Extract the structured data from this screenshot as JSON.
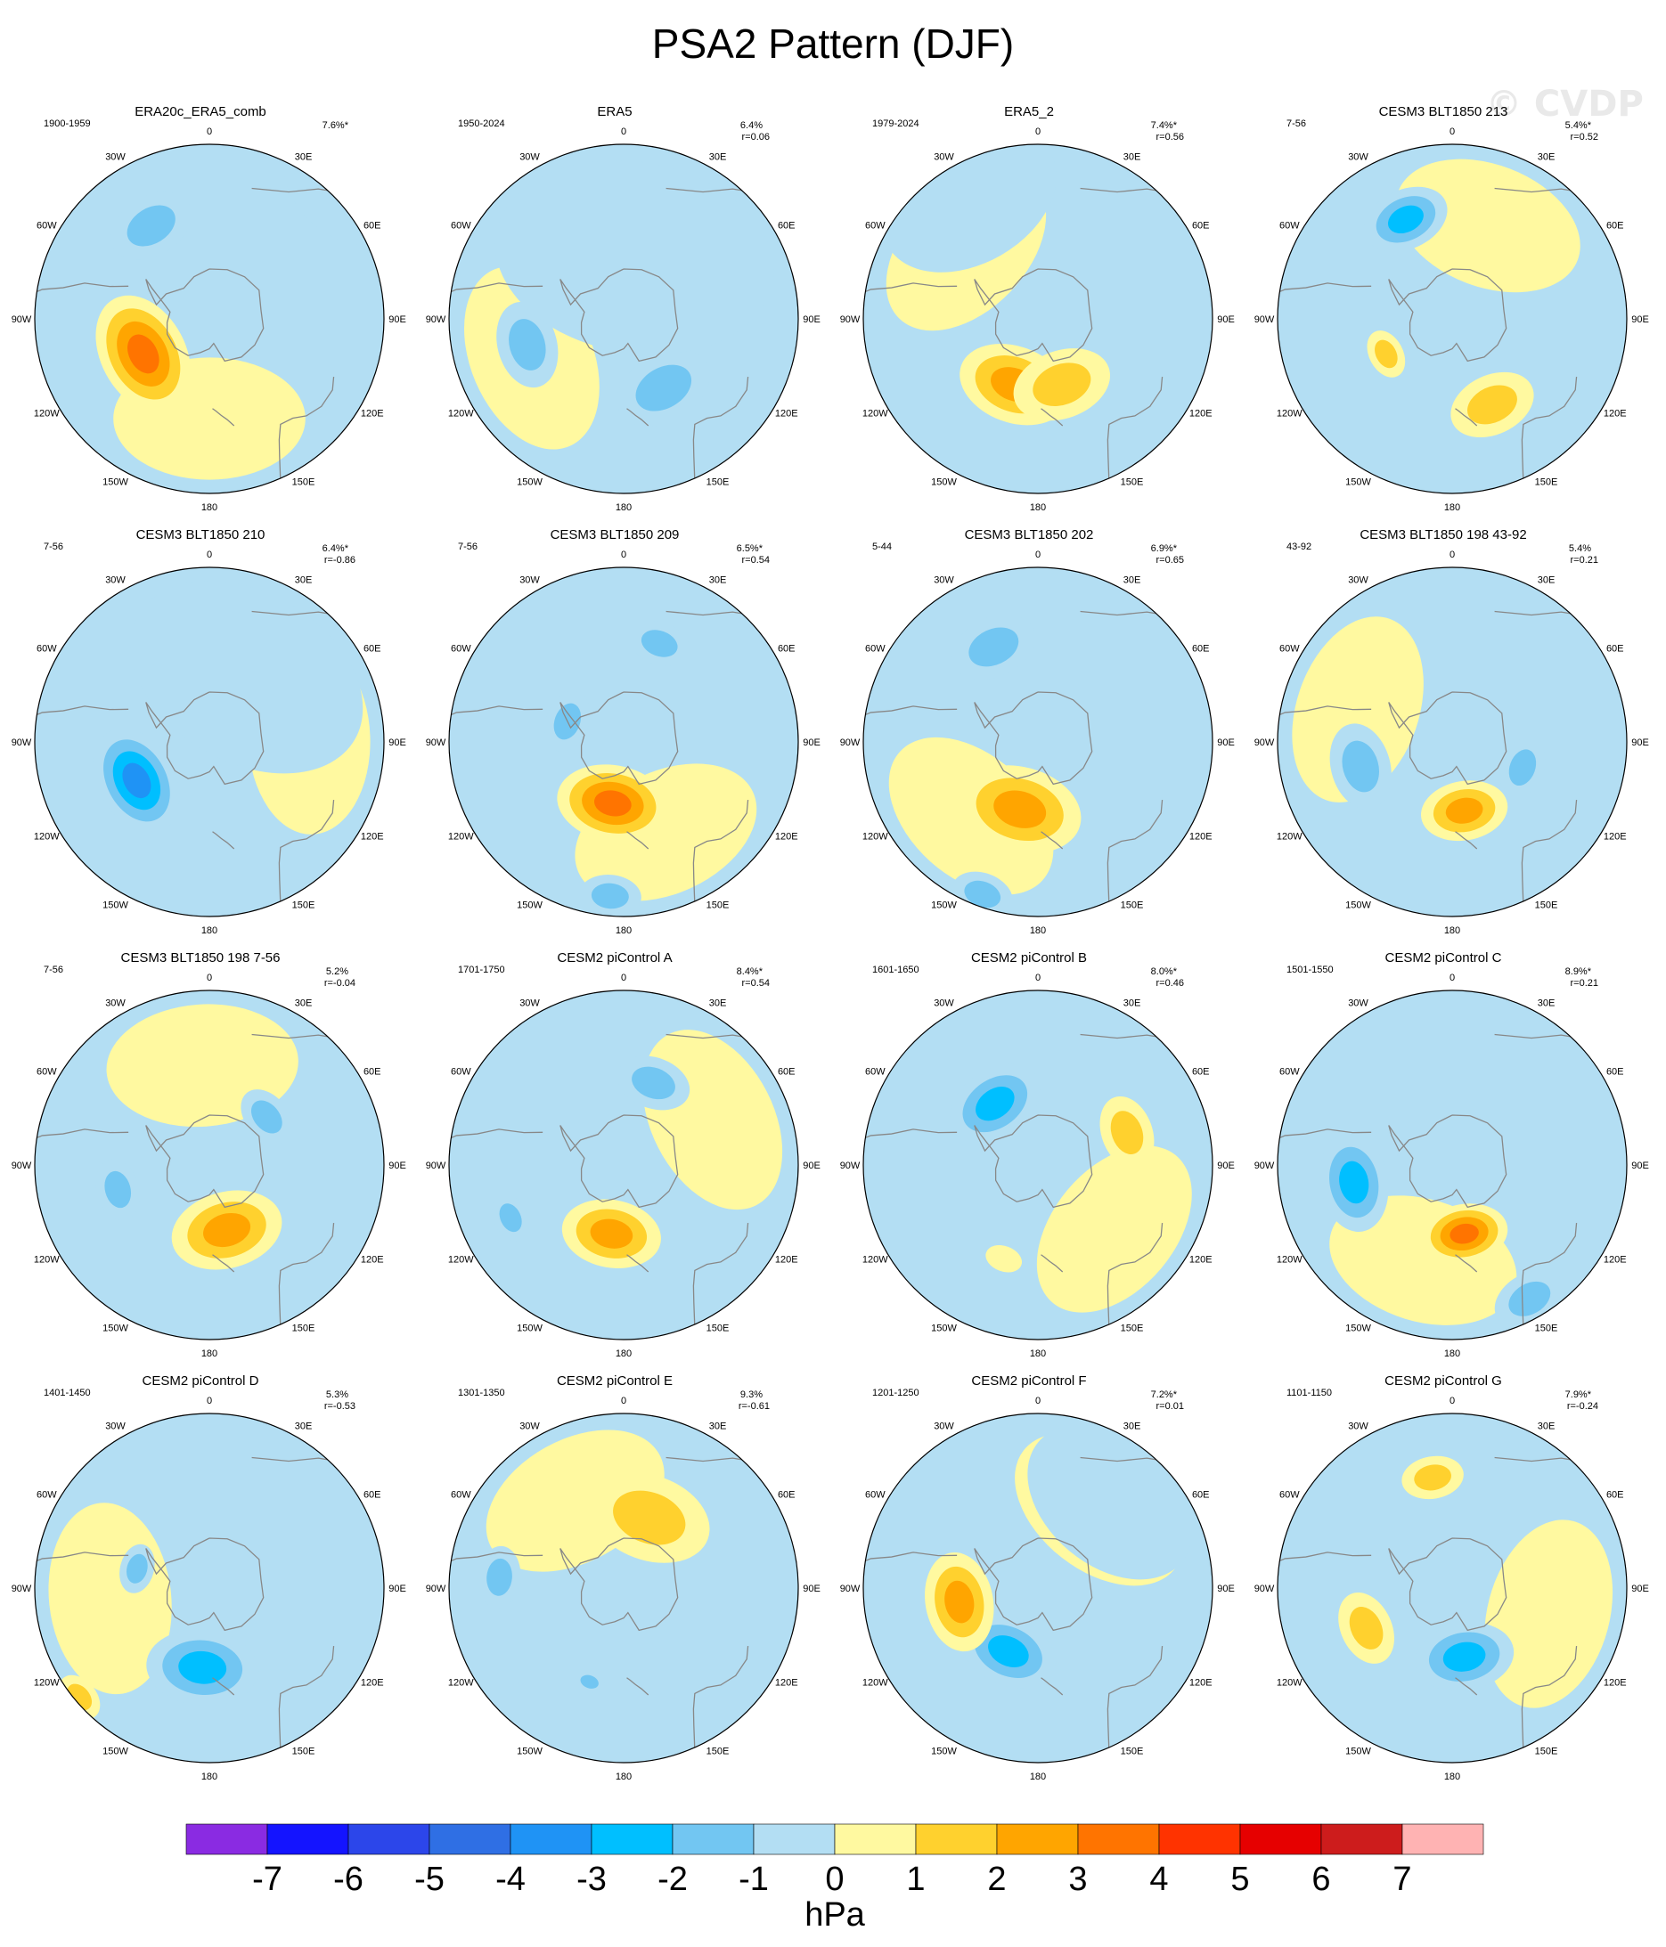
{
  "figure_title": "PSA2 Pattern (DJF)",
  "watermark": "© CVDP",
  "lon_labels": [
    "0",
    "30E",
    "60E",
    "90E",
    "120E",
    "150E",
    "180",
    "150W",
    "120W",
    "90W",
    "60W",
    "30W"
  ],
  "colors": {
    "land_outline": "#888888",
    "levels": [
      "#8a2be2",
      "#1414ff",
      "#2c46ea",
      "#2f6fe4",
      "#1f93f5",
      "#00bfff",
      "#72c6f2",
      "#b3def3",
      "#fff9a0",
      "#ffd12e",
      "#ffa500",
      "#ff7400",
      "#ff3300",
      "#e60000",
      "#cd1c1c",
      "#ffb3b3"
    ]
  },
  "chart_data": {
    "type": "heatmap",
    "projection": "south-polar-stereographic",
    "units": "hPa",
    "colorbar": {
      "ticks": [
        "-7",
        "-6",
        "-5",
        "-4",
        "-3",
        "-2",
        "-1",
        "0",
        "1",
        "2",
        "3",
        "4",
        "5",
        "6",
        "7"
      ],
      "label": "hPa",
      "boundaries": [
        -7,
        -6,
        -5,
        -4,
        -3,
        -2,
        -1,
        0,
        1,
        2,
        3,
        4,
        5,
        6,
        7
      ]
    },
    "panels": [
      {
        "title": "ERA20c_ERA5_comb",
        "period": "1900-1959",
        "pct": "7.6%*",
        "r": "",
        "anomalies": [
          {
            "lon": -118,
            "colat": 30,
            "v": 3.5,
            "w": 20
          },
          {
            "lon": -32,
            "colat": 44,
            "v": -1.8,
            "w": 14
          },
          {
            "lon": 45,
            "colat": 75,
            "v": -0.6,
            "w": 22
          }
        ]
      },
      {
        "title": "ERA5",
        "period": "1950-2024",
        "pct": "6.4%",
        "r": "r=0.06",
        "anomalies": [
          {
            "lon": -105,
            "colat": 40,
            "v": -1.5,
            "w": 14
          },
          {
            "lon": 150,
            "colat": 32,
            "v": -1.8,
            "w": 16
          },
          {
            "lon": 10,
            "colat": 25,
            "v": -0.4,
            "w": 45
          }
        ]
      },
      {
        "title": "ERA5_2",
        "period": "1979-2024",
        "pct": "7.4%*",
        "r": "r=0.56",
        "anomalies": [
          {
            "lon": -160,
            "colat": 28,
            "v": 2.3,
            "w": 18
          },
          {
            "lon": 160,
            "colat": 28,
            "v": 1.8,
            "w": 16
          },
          {
            "lon": -30,
            "colat": 55,
            "v": -0.6,
            "w": 30
          }
        ]
      },
      {
        "title": "CESM3 BLT1850 213",
        "period": "7-56",
        "pct": "5.4%*",
        "r": "r=0.52",
        "anomalies": [
          {
            "lon": -25,
            "colat": 44,
            "v": -2.6,
            "w": 14
          },
          {
            "lon": 155,
            "colat": 38,
            "v": 1.8,
            "w": 14
          },
          {
            "lon": -118,
            "colat": 30,
            "v": 1.2,
            "w": 8
          }
        ]
      },
      {
        "title": "CESM3 BLT1850 210",
        "period": "7-56",
        "pct": "6.4%*",
        "r": "r=-0.86",
        "anomalies": [
          {
            "lon": -118,
            "colat": 33,
            "v": -3.2,
            "w": 18
          },
          {
            "lon": 30,
            "colat": 30,
            "v": -0.6,
            "w": 40
          }
        ]
      },
      {
        "title": "CESM3 BLT1850 209",
        "period": "7-56",
        "pct": "6.5%*",
        "r": "r=0.54",
        "anomalies": [
          {
            "lon": -170,
            "colat": 25,
            "v": 3.2,
            "w": 18
          },
          {
            "lon": -70,
            "colat": 24,
            "v": -1.6,
            "w": 10
          },
          {
            "lon": 20,
            "colat": 42,
            "v": -1.5,
            "w": 10
          },
          {
            "lon": -175,
            "colat": 62,
            "v": -1.3,
            "w": 10
          }
        ]
      },
      {
        "title": "CESM3 BLT1850 202",
        "period": "5-44",
        "pct": "6.9%*",
        "r": "r=0.65",
        "anomalies": [
          {
            "lon": -165,
            "colat": 28,
            "v": 2.3,
            "w": 20
          },
          {
            "lon": -25,
            "colat": 42,
            "v": -1.8,
            "w": 14
          },
          {
            "lon": -160,
            "colat": 65,
            "v": -1.3,
            "w": 10
          }
        ]
      },
      {
        "title": "CESM3 BLT1850 198 43-92",
        "period": "43-92",
        "pct": "5.4%",
        "r": "r=0.21",
        "anomalies": [
          {
            "lon": -105,
            "colat": 38,
            "v": -1.8,
            "w": 14
          },
          {
            "lon": 170,
            "colat": 28,
            "v": 2.6,
            "w": 14
          },
          {
            "lon": 110,
            "colat": 30,
            "v": -1.7,
            "w": 10
          }
        ]
      },
      {
        "title": "CESM3 BLT1850 198 7-56",
        "period": "7-56",
        "pct": "5.2%",
        "r": "r=-0.04",
        "anomalies": [
          {
            "lon": 165,
            "colat": 27,
            "v": 2.7,
            "w": 18
          },
          {
            "lon": -105,
            "colat": 38,
            "v": -1.6,
            "w": 10
          },
          {
            "lon": 50,
            "colat": 30,
            "v": -1.5,
            "w": 10
          }
        ]
      },
      {
        "title": "CESM2 piControl A",
        "period": "1701-1750",
        "pct": "8.4%*",
        "r": "r=0.54",
        "anomalies": [
          {
            "lon": -170,
            "colat": 28,
            "v": 3.0,
            "w": 16
          },
          {
            "lon": 20,
            "colat": 35,
            "v": -1.6,
            "w": 12
          },
          {
            "lon": -115,
            "colat": 50,
            "v": -1.4,
            "w": 8
          },
          {
            "lon": 100,
            "colat": 77,
            "v": 1.8,
            "w": 6
          }
        ]
      },
      {
        "title": "CESM2 piControl B",
        "period": "1601-1650",
        "pct": "8.0%*",
        "r": "r=0.46",
        "anomalies": [
          {
            "lon": -35,
            "colat": 30,
            "v": -2.8,
            "w": 16
          },
          {
            "lon": 70,
            "colat": 38,
            "v": 1.8,
            "w": 12
          },
          {
            "lon": -160,
            "colat": 40,
            "v": 1.0,
            "w": 6
          }
        ]
      },
      {
        "title": "CESM2 piControl C",
        "period": "1501-1550",
        "pct": "8.9%*",
        "r": "r=0.21",
        "anomalies": [
          {
            "lon": -100,
            "colat": 40,
            "v": -2.8,
            "w": 16
          },
          {
            "lon": 170,
            "colat": 28,
            "v": 3.2,
            "w": 14
          },
          {
            "lon": 150,
            "colat": 62,
            "v": -1.5,
            "w": 12
          }
        ]
      },
      {
        "title": "CESM2 piControl D",
        "period": "1401-1450",
        "pct": "5.3%",
        "r": "r=-0.53",
        "anomalies": [
          {
            "lon": -175,
            "colat": 32,
            "v": -2.3,
            "w": 18
          },
          {
            "lon": -130,
            "colat": 68,
            "v": 1.3,
            "w": 8
          },
          {
            "lon": -75,
            "colat": 30,
            "v": -1.3,
            "w": 8
          }
        ]
      },
      {
        "title": "CESM2 piControl E",
        "period": "1301-1350",
        "pct": "9.3%",
        "r": "r=-0.61",
        "anomalies": [
          {
            "lon": 20,
            "colat": 30,
            "v": 2.0,
            "w": 20
          },
          {
            "lon": -85,
            "colat": 50,
            "v": -1.3,
            "w": 10
          },
          {
            "lon": -160,
            "colat": 40,
            "v": -1.1,
            "w": 5
          }
        ]
      },
      {
        "title": "CESM2 piControl F",
        "period": "1201-1250",
        "pct": "7.2%*",
        "r": "r=0.01",
        "anomalies": [
          {
            "lon": -155,
            "colat": 28,
            "v": -3.0,
            "w": 16
          },
          {
            "lon": -100,
            "colat": 32,
            "v": 2.2,
            "w": 16
          },
          {
            "lon": 40,
            "colat": 45,
            "v": -0.5,
            "w": 30
          }
        ]
      },
      {
        "title": "CESM2 piControl G",
        "period": "1101-1150",
        "pct": "7.9%*",
        "r": "r=-0.24",
        "anomalies": [
          {
            "lon": 170,
            "colat": 28,
            "v": -2.5,
            "w": 16
          },
          {
            "lon": -115,
            "colat": 38,
            "v": 1.9,
            "w": 12
          },
          {
            "lon": -10,
            "colat": 45,
            "v": 1.7,
            "w": 10
          }
        ]
      }
    ]
  }
}
